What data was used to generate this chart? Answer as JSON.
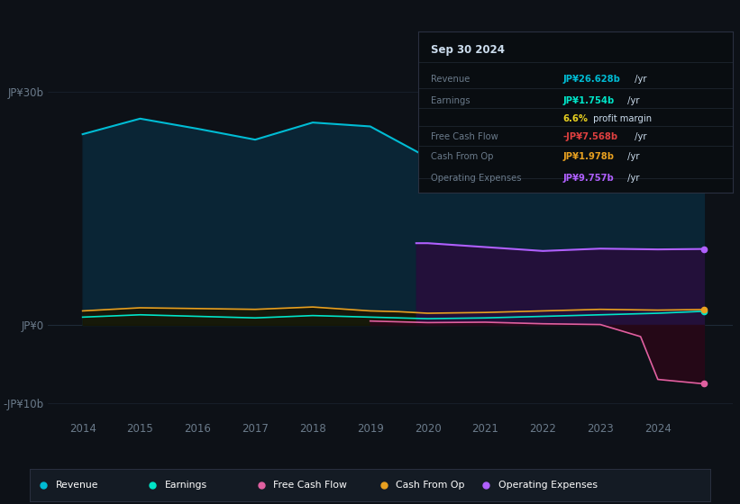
{
  "bg_color": "#0d1117",
  "title": "Sep 30 2024",
  "years": [
    2014,
    2015,
    2016,
    2017,
    2018,
    2019,
    2020,
    2021,
    2022,
    2023,
    2024,
    2024.8
  ],
  "revenue": [
    24.5,
    26.5,
    25.2,
    23.8,
    26.0,
    25.5,
    21.5,
    22.8,
    25.5,
    27.5,
    26.2,
    26.628
  ],
  "earnings": [
    1.0,
    1.3,
    1.1,
    0.9,
    1.2,
    1.0,
    0.8,
    0.9,
    1.1,
    1.3,
    1.5,
    1.754
  ],
  "cash_from_op_years": [
    2014,
    2015,
    2016,
    2017,
    2018,
    2019,
    2019.5,
    2020,
    2021,
    2022,
    2023,
    2024,
    2024.8
  ],
  "cash_from_op": [
    1.8,
    2.2,
    2.1,
    2.0,
    2.3,
    1.8,
    1.7,
    1.5,
    1.6,
    1.8,
    2.0,
    1.9,
    1.978
  ],
  "fcf_years": [
    2019,
    2019.5,
    2020,
    2021,
    2022,
    2023,
    2023.7,
    2024,
    2024.8
  ],
  "fcf_vals": [
    0.5,
    0.4,
    0.3,
    0.35,
    0.15,
    0.05,
    -1.5,
    -7.0,
    -7.568
  ],
  "op_years": [
    2019.8,
    2020,
    2021,
    2022,
    2023,
    2024,
    2024.8
  ],
  "op_vals": [
    10.5,
    10.5,
    10.0,
    9.5,
    9.8,
    9.7,
    9.757
  ],
  "xlim": [
    2013.4,
    2025.3
  ],
  "ylim": [
    -12,
    33
  ],
  "yticks": [
    -10,
    0,
    30
  ],
  "ytick_labels": [
    "-JP¥10b",
    "JP¥0",
    "JP¥30b"
  ],
  "revenue_line_color": "#00bcd4",
  "revenue_fill_color": "#0a2535",
  "earnings_line_color": "#00e5c8",
  "earnings_fill_color": "#0a2e2e",
  "fcf_line_color": "#e060a0",
  "fcf_fill_color": "#280818",
  "cash_line_color": "#e8a020",
  "cash_fill_color": "#1a1500",
  "op_line_color": "#b060ff",
  "op_fill_color": "#23103a",
  "text_color": "#6a7a8a",
  "grid_color": "#1e2a38",
  "legend_bg": "#141b24",
  "tooltip_bg": "#090d11",
  "tooltip_border": "#2a3040",
  "tooltip_label_color": "#6a7a8a",
  "tooltip_title_color": "#ccddee",
  "revenue_val_color": "#00bcd4",
  "earnings_val_color": "#00e5c8",
  "margin_val_color": "#e8d020",
  "fcf_val_color": "#e04040",
  "cash_val_color": "#e8a020",
  "op_val_color": "#b060ff"
}
